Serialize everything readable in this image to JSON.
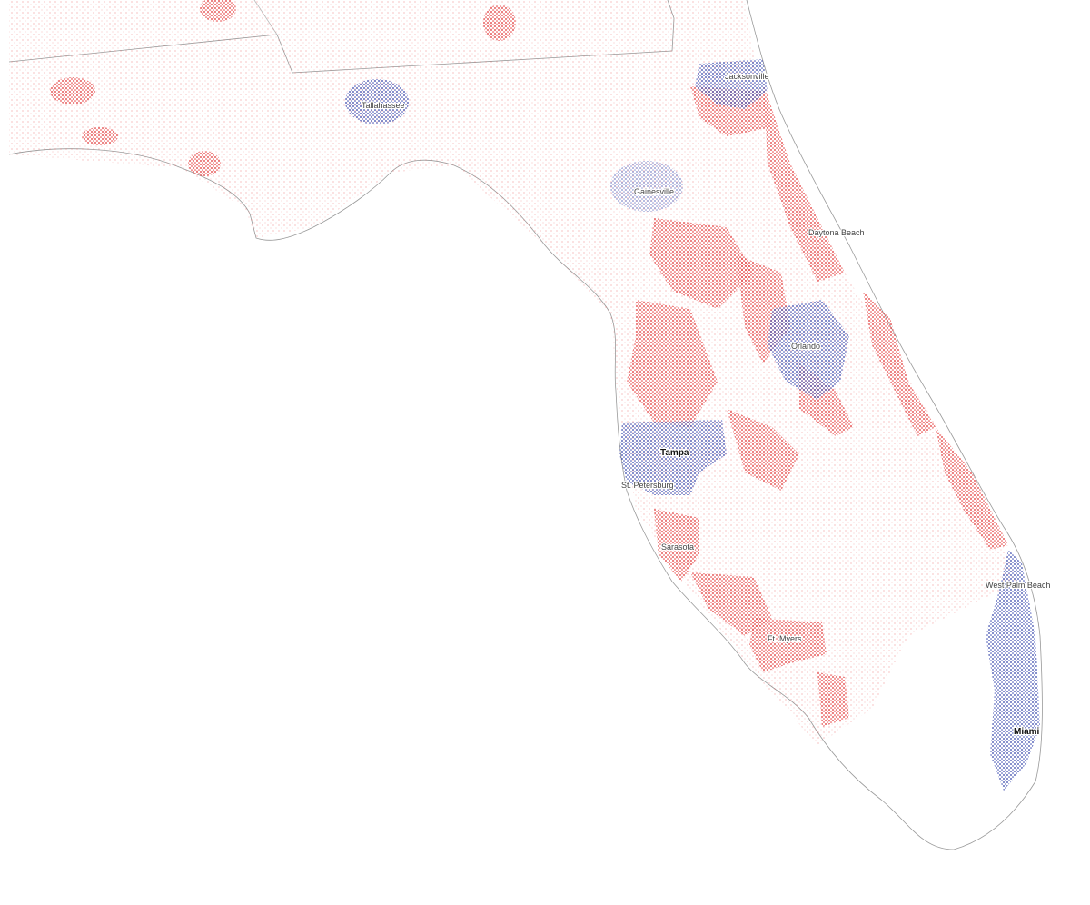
{
  "map": {
    "labels": [
      {
        "text": "Jacksonville"
      },
      {
        "text": "Tallahassee"
      },
      {
        "text": "Gainesville"
      },
      {
        "text": "Daytona Beach"
      },
      {
        "text": "Orlando"
      },
      {
        "text": "Tampa"
      },
      {
        "text": "St. Petersburg"
      },
      {
        "text": "Sarasota"
      },
      {
        "text": "West Palm Beach"
      },
      {
        "text": "Ft. Myers"
      },
      {
        "text": "Miami"
      }
    ]
  }
}
